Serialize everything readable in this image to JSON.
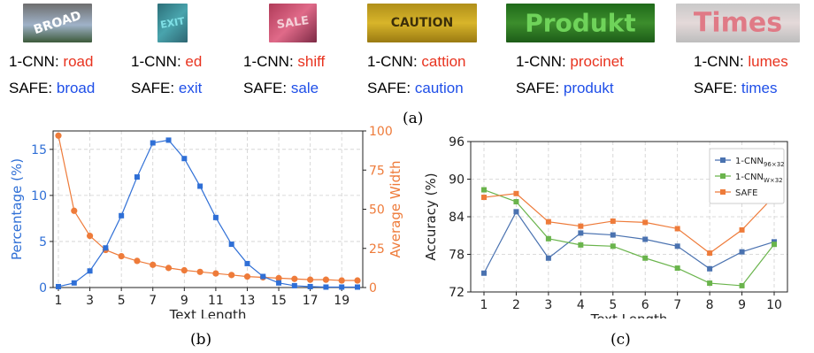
{
  "samples": [
    {
      "image_text": "BROAD",
      "cnn_label": "1-CNN:",
      "cnn_pred": "road",
      "safe_label": "SAFE:",
      "safe_pred": "broad"
    },
    {
      "image_text": "EXIT",
      "cnn_label": "1-CNN:",
      "cnn_pred": "ed",
      "safe_label": "SAFE:",
      "safe_pred": "exit"
    },
    {
      "image_text": "SALE",
      "cnn_label": "1-CNN:",
      "cnn_pred": "shiff",
      "safe_label": "SAFE:",
      "safe_pred": "sale"
    },
    {
      "image_text": "CAUTION",
      "cnn_label": "1-CNN:",
      "cnn_pred": "cattion",
      "safe_label": "SAFE:",
      "safe_pred": "caution"
    },
    {
      "image_text": "Produkt",
      "cnn_label": "1-CNN:",
      "cnn_pred": "procinet",
      "safe_label": "SAFE:",
      "safe_pred": "produkt"
    },
    {
      "image_text": "Times",
      "cnn_label": "1-CNN:",
      "cnn_pred": "lumes",
      "safe_label": "SAFE:",
      "safe_pred": "times"
    }
  ],
  "captions": {
    "a": "(a)",
    "b": "(b)",
    "c": "(c)"
  },
  "colors": {
    "blue": "#2f6fd6",
    "orange": "#ee7b3a",
    "green": "#6ab44c",
    "steel": "#4a72b0",
    "wrong": "#e8331f",
    "right": "#1f4fe8"
  },
  "chart_data": [
    {
      "type": "line",
      "xlabel": "Text Length",
      "ylabel": "Percentage (%)",
      "y2label": "Average Width",
      "x": [
        1,
        2,
        3,
        4,
        5,
        6,
        7,
        8,
        9,
        10,
        11,
        12,
        13,
        14,
        15,
        16,
        17,
        18,
        19,
        20
      ],
      "xticks": [
        "1",
        "3",
        "5",
        "7",
        "9",
        "11",
        "13",
        "15",
        "17",
        "19"
      ],
      "ylim": [
        0,
        17
      ],
      "yticks": [
        "0",
        "5",
        "10",
        "15"
      ],
      "y2lim": [
        0,
        100
      ],
      "y2ticks": [
        "0",
        "25",
        "50",
        "75",
        "100"
      ],
      "grid": true,
      "series": [
        {
          "values": [
            0.1,
            0.5,
            1.8,
            4.3,
            7.8,
            12.0,
            15.7,
            16.0,
            14.0,
            11.0,
            7.6,
            4.7,
            2.6,
            1.2,
            0.5,
            0.2,
            0.1,
            0.05,
            0.05,
            0.05
          ]
        },
        {
          "values": [
            97,
            49,
            33,
            24,
            20,
            17,
            14.5,
            12.5,
            11,
            10,
            9,
            8,
            7,
            6.5,
            6,
            5.5,
            5,
            5,
            4.5,
            4.5
          ]
        }
      ]
    },
    {
      "type": "line",
      "xlabel": "Text Length",
      "ylabel": "Accuracy (%)",
      "x": [
        1,
        2,
        3,
        4,
        5,
        6,
        7,
        8,
        9,
        10
      ],
      "ylim": [
        72,
        96
      ],
      "yticks": [
        "72",
        "78",
        "84",
        "90",
        "96"
      ],
      "grid": true,
      "legend": "top-right",
      "series": [
        {
          "name": "1-CNN",
          "name_sub": "96×32",
          "values": [
            75.0,
            84.8,
            77.4,
            81.4,
            81.1,
            80.4,
            79.3,
            75.7,
            78.4,
            80.0
          ]
        },
        {
          "name": "1-CNN",
          "name_sub": "W×32",
          "values": [
            88.3,
            86.4,
            80.5,
            79.5,
            79.3,
            77.4,
            75.8,
            73.4,
            73.0,
            79.6
          ]
        },
        {
          "name": "SAFE",
          "values": [
            87.1,
            87.7,
            83.2,
            82.5,
            83.3,
            83.1,
            82.1,
            78.2,
            81.9,
            87.3
          ]
        }
      ]
    }
  ]
}
